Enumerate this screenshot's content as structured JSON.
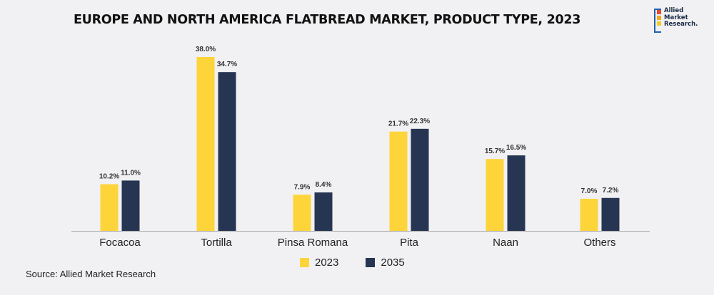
{
  "colors": {
    "series_2023": "#fdd43a",
    "series_2035": "#263552",
    "axis": "#aaaaaa",
    "label": "#333333"
  },
  "logo": {
    "line1": "Allied",
    "line2": "Market",
    "line3": "Research."
  },
  "source": "Source: Allied Market Research",
  "chart_data": {
    "type": "bar",
    "title": "EUROPE AND NORTH AMERICA FLATBREAD MARKET, PRODUCT TYPE, 2023",
    "categories": [
      "Focacoa",
      "Tortilla",
      "Pinsa Romana",
      "Pita",
      "Naan",
      "Others"
    ],
    "series": [
      {
        "name": "2023",
        "values": [
          10.2,
          38.0,
          7.9,
          21.7,
          15.7,
          7.0
        ],
        "labels": [
          "10.2%",
          "38.0%",
          "7.9%",
          "21.7%",
          "15.7%",
          "7.0%"
        ]
      },
      {
        "name": "2035",
        "values": [
          11.0,
          34.7,
          8.4,
          22.3,
          16.5,
          7.2
        ],
        "labels": [
          "11.0%",
          "34.7%",
          "8.4%",
          "22.3%",
          "16.5%",
          "7.2%"
        ]
      }
    ],
    "xlabel": "",
    "ylabel": "",
    "ylim": [
      0,
      40
    ],
    "legend_position": "bottom-center",
    "grid": false
  }
}
